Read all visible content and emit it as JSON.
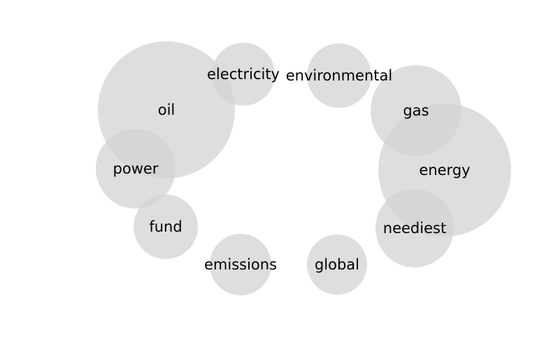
{
  "chart_data": {
    "type": "bubble",
    "title": "",
    "xlabel": "",
    "ylabel": "",
    "grid": false,
    "legend": "none",
    "colors": {
      "bubble": "#d3d3d3",
      "label": "#000000",
      "background": "#ffffff"
    },
    "bubbles": [
      {
        "word": "oil",
        "size": 98
      },
      {
        "word": "electricity",
        "size": 45
      },
      {
        "word": "environmental",
        "size": 46
      },
      {
        "word": "gas",
        "size": 65
      },
      {
        "word": "energy",
        "size": 95
      },
      {
        "word": "power",
        "size": 57
      },
      {
        "word": "fund",
        "size": 46
      },
      {
        "word": "neediest",
        "size": 56
      },
      {
        "word": "emissions",
        "size": 44
      },
      {
        "word": "global",
        "size": 43
      }
    ]
  }
}
